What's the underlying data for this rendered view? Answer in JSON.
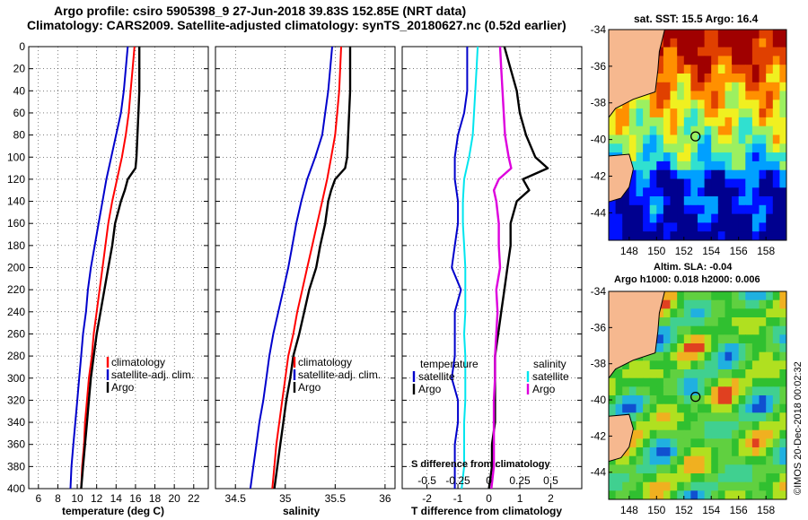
{
  "header": {
    "line1": "Argo profile: csiro 5905398_9 27-Jun-2018 39.83S 152.85E (NRT data)",
    "line2": "Climatology: CARS2009. Satellite-adjusted climatology: synTS_20180627.nc (0.52d earlier)"
  },
  "colors": {
    "argo": "#000000",
    "climatology": "#ff0000",
    "satellite": "#0000cc",
    "salinity_satellite": "#00e5ee",
    "salinity_argo": "#dd00dd"
  },
  "chart_data": [
    {
      "type": "line",
      "title": "",
      "xlabel": "temperature (deg C)",
      "ylabel": "",
      "xlim": [
        5,
        23.5
      ],
      "ylim": [
        400,
        0
      ],
      "xticks": [
        6,
        8,
        10,
        12,
        14,
        16,
        18,
        20,
        22
      ],
      "yticks": [
        0,
        20,
        40,
        60,
        80,
        100,
        120,
        140,
        160,
        180,
        200,
        220,
        240,
        260,
        280,
        300,
        320,
        340,
        360,
        380,
        400
      ],
      "legend": [
        "climatology",
        "satellite-adj. clim.",
        "Argo"
      ],
      "series": [
        {
          "name": "climatology",
          "color": "#ff0000",
          "depth": [
            0,
            20,
            40,
            60,
            80,
            100,
            120,
            140,
            160,
            180,
            200,
            220,
            240,
            260,
            280,
            300,
            320,
            340,
            360,
            380,
            400
          ],
          "values": [
            15.9,
            15.7,
            15.5,
            15.3,
            15.0,
            14.6,
            14.1,
            13.6,
            13.2,
            12.9,
            12.6,
            12.3,
            12.0,
            11.7,
            11.5,
            11.2,
            11.0,
            10.8,
            10.7,
            10.5,
            10.4
          ]
        },
        {
          "name": "satellite-adj. clim.",
          "color": "#0000cc",
          "depth": [
            0,
            20,
            40,
            60,
            80,
            100,
            120,
            140,
            160,
            180,
            200,
            220,
            240,
            260,
            280,
            300,
            320,
            340,
            360,
            380,
            400
          ],
          "values": [
            15.2,
            15.0,
            14.8,
            14.5,
            14.0,
            13.5,
            13.0,
            12.6,
            12.2,
            11.8,
            11.4,
            11.1,
            10.9,
            10.6,
            10.4,
            10.2,
            10.0,
            9.8,
            9.6,
            9.4,
            9.3
          ]
        },
        {
          "name": "Argo",
          "color": "#000000",
          "depth": [
            0,
            20,
            40,
            60,
            80,
            100,
            110,
            120,
            130,
            140,
            160,
            180,
            200,
            220,
            240,
            260,
            280,
            300,
            320,
            340,
            360,
            380,
            400
          ],
          "values": [
            16.4,
            16.4,
            16.4,
            16.3,
            16.2,
            16.1,
            16.0,
            15.2,
            14.9,
            14.5,
            13.9,
            13.6,
            13.2,
            12.8,
            12.4,
            12.0,
            11.7,
            11.4,
            11.2,
            11.0,
            10.8,
            10.6,
            10.4
          ]
        }
      ]
    },
    {
      "type": "line",
      "title": "",
      "xlabel": "salinity",
      "ylabel": "",
      "xlim": [
        34.3,
        36.1
      ],
      "ylim": [
        400,
        0
      ],
      "xticks": [
        34.5,
        35,
        35.5,
        36
      ],
      "legend": [
        "climatology",
        "satellite-adj. clim.",
        "Argo"
      ],
      "series": [
        {
          "name": "climatology",
          "color": "#ff0000",
          "depth": [
            0,
            20,
            40,
            60,
            80,
            100,
            120,
            140,
            160,
            180,
            200,
            220,
            240,
            260,
            280,
            300,
            320,
            340,
            360,
            380,
            400
          ],
          "values": [
            35.56,
            35.55,
            35.54,
            35.52,
            35.5,
            35.46,
            35.42,
            35.37,
            35.32,
            35.27,
            35.22,
            35.17,
            35.12,
            35.08,
            35.03,
            35.0,
            34.97,
            34.94,
            34.91,
            34.89,
            34.87
          ]
        },
        {
          "name": "satellite-adj. clim.",
          "color": "#0000cc",
          "depth": [
            0,
            20,
            40,
            60,
            80,
            100,
            120,
            140,
            160,
            180,
            200,
            220,
            240,
            260,
            280,
            300,
            320,
            340,
            360,
            380,
            400
          ],
          "values": [
            35.47,
            35.45,
            35.43,
            35.4,
            35.37,
            35.3,
            35.22,
            35.16,
            35.11,
            35.07,
            35.03,
            34.98,
            34.93,
            34.88,
            34.84,
            34.81,
            34.78,
            34.74,
            34.71,
            34.68,
            34.65
          ]
        },
        {
          "name": "Argo",
          "color": "#000000",
          "depth": [
            0,
            20,
            40,
            60,
            80,
            100,
            110,
            120,
            130,
            140,
            160,
            180,
            200,
            220,
            240,
            260,
            280,
            300,
            320,
            340,
            360,
            380,
            400
          ],
          "values": [
            35.65,
            35.65,
            35.65,
            35.64,
            35.63,
            35.62,
            35.6,
            35.5,
            35.46,
            35.43,
            35.4,
            35.35,
            35.31,
            35.24,
            35.19,
            35.14,
            35.08,
            35.05,
            35.01,
            34.98,
            34.95,
            34.92,
            34.89
          ]
        }
      ]
    },
    {
      "type": "line",
      "title": "",
      "xlabel": "T difference from climatology",
      "x2label": "S difference from climatology",
      "ylabel": "",
      "xlim": [
        -2.8,
        3.0
      ],
      "ylim": [
        400,
        0
      ],
      "xticks": [
        -2,
        -1,
        0,
        1,
        2
      ],
      "x2ticks": [
        "-0.5",
        "-0.25",
        "0",
        "0.25",
        "0.5"
      ],
      "legend_left_title": "temperature",
      "legend_left": [
        "satellite",
        "Argo"
      ],
      "legend_right_title": "salinity",
      "legend_right": [
        "satellite",
        "Argo"
      ],
      "series": [
        {
          "name": "temperature satellite",
          "color": "#0000cc",
          "depth": [
            0,
            20,
            40,
            60,
            80,
            100,
            120,
            140,
            160,
            180,
            200,
            220,
            240,
            260,
            280,
            300,
            320,
            340,
            360,
            380,
            400
          ],
          "values": [
            -0.7,
            -0.7,
            -0.7,
            -0.8,
            -1.0,
            -1.1,
            -1.1,
            -1.0,
            -1.0,
            -1.1,
            -1.2,
            -0.9,
            -1.1,
            -1.1,
            -1.1,
            -1.2,
            -1.0,
            -1.0,
            -1.1,
            -1.1,
            -1.1
          ]
        },
        {
          "name": "temperature Argo",
          "color": "#000000",
          "depth": [
            0,
            20,
            40,
            60,
            80,
            100,
            110,
            120,
            130,
            140,
            160,
            180,
            200,
            220,
            240,
            260,
            280,
            300,
            320,
            340,
            360,
            380,
            400
          ],
          "values": [
            0.5,
            0.7,
            0.9,
            1.0,
            1.2,
            1.5,
            1.9,
            1.1,
            1.3,
            0.9,
            0.7,
            0.7,
            0.6,
            0.5,
            0.4,
            0.3,
            0.2,
            0.2,
            0.2,
            0.2,
            0.1,
            0.1,
            0.0
          ]
        },
        {
          "name": "salinity satellite",
          "color": "#00e5ee",
          "depth": [
            0,
            20,
            40,
            60,
            80,
            100,
            120,
            140,
            160,
            180,
            200,
            220,
            240,
            260,
            280,
            300,
            320,
            340,
            360,
            380,
            400
          ],
          "values": [
            -0.09,
            -0.1,
            -0.11,
            -0.12,
            -0.13,
            -0.16,
            -0.2,
            -0.21,
            -0.21,
            -0.2,
            -0.19,
            -0.19,
            -0.19,
            -0.2,
            -0.19,
            -0.19,
            -0.19,
            -0.2,
            -0.2,
            -0.2,
            -0.22
          ]
        },
        {
          "name": "salinity Argo",
          "color": "#dd00dd",
          "depth": [
            0,
            20,
            40,
            60,
            80,
            100,
            110,
            120,
            130,
            140,
            160,
            180,
            200,
            220,
            240,
            260,
            280,
            300,
            320,
            340,
            360,
            380,
            400
          ],
          "values": [
            0.09,
            0.1,
            0.11,
            0.12,
            0.13,
            0.16,
            0.18,
            0.08,
            0.04,
            0.06,
            0.08,
            0.08,
            0.09,
            0.06,
            0.07,
            0.06,
            0.05,
            0.05,
            0.04,
            0.04,
            0.04,
            0.04,
            0.02
          ]
        }
      ]
    },
    {
      "type": "heatmap",
      "title": "sat. SST: 15.5  Argo: 16.4",
      "xticks": [
        148,
        150,
        152,
        154,
        156,
        158
      ],
      "yticks": [
        -34,
        -36,
        -38,
        -40,
        -42,
        -44
      ],
      "xlim": [
        146.5,
        159.5
      ],
      "ylim": [
        -45.5,
        -34
      ],
      "marker": {
        "lon": 152.85,
        "lat": -39.83
      }
    },
    {
      "type": "heatmap",
      "title": "Altim. SLA: -0.04",
      "subtitle": "Argo h1000: 0.018 h2000: 0.006",
      "xticks": [
        148,
        150,
        152,
        154,
        156,
        158
      ],
      "yticks": [
        -34,
        -36,
        -38,
        -40,
        -42,
        -44
      ],
      "xlim": [
        146.5,
        159.5
      ],
      "ylim": [
        -45.5,
        -34
      ],
      "marker": {
        "lon": 152.85,
        "lat": -39.83
      }
    }
  ],
  "credit": "©IMOS 20-Dec-2018 00:02:32"
}
